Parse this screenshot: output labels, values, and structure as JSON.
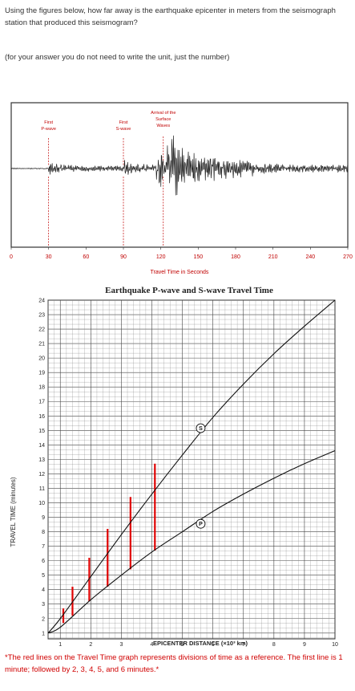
{
  "question": {
    "text": "Using the figures below, how far away is the earthquake epicenter in meters from the seismograph station that produced this seismogram?",
    "note": "(for your answer you do not need to write the unit, just the number)"
  },
  "seismogram": {
    "labels": {
      "p_wave": [
        "First",
        "P-wave"
      ],
      "s_wave": [
        "First",
        "S-wave"
      ],
      "surface": [
        "Arrival of the",
        "Surface",
        "Waves"
      ]
    },
    "x_ticks": [
      "0",
      "30",
      "60",
      "90",
      "120",
      "150",
      "180",
      "210",
      "240",
      "270"
    ],
    "x_axis_label": "Travel Time in Seconds",
    "arrivals_seconds": {
      "p_wave": 30,
      "s_wave": 90,
      "surface": 122
    }
  },
  "chart_data": {
    "type": "line",
    "title": "Earthquake P-wave and S-wave Travel Time",
    "xlabel": "EPICENTER DISTANCE (×10³ km)",
    "ylabel": "TRAVEL TIME (minutes)",
    "x_ticks": [
      "1",
      "2",
      "3",
      "4",
      "5",
      "6",
      "7",
      "8",
      "9",
      "10"
    ],
    "y_ticks": [
      "1",
      "2",
      "3",
      "4",
      "5",
      "6",
      "7",
      "8",
      "9",
      "10",
      "11",
      "12",
      "13",
      "14",
      "15",
      "16",
      "17",
      "18",
      "19",
      "20",
      "21",
      "22",
      "23",
      "24"
    ],
    "xlim": [
      0.6,
      10
    ],
    "ylim": [
      0.6,
      24
    ],
    "series": [
      {
        "name": "S",
        "x": [
          0.6,
          1,
          2,
          3,
          4,
          5,
          6,
          7,
          8,
          9,
          10
        ],
        "y": [
          1.0,
          2.0,
          4.9,
          7.8,
          10.6,
          13.3,
          15.9,
          18.2,
          20.3,
          22.2,
          24.0
        ]
      },
      {
        "name": "P",
        "x": [
          0.6,
          1,
          2,
          3,
          4,
          5,
          6,
          7,
          8,
          9,
          10
        ],
        "y": [
          1.0,
          1.4,
          3.3,
          5.0,
          6.6,
          8.0,
          9.4,
          10.6,
          11.7,
          12.7,
          13.6
        ]
      }
    ],
    "reference_lines": [
      {
        "x": 1.1,
        "y_low": 1.7,
        "y_high": 2.7
      },
      {
        "x": 1.4,
        "y_low": 2.2,
        "y_high": 4.2
      },
      {
        "x": 1.95,
        "y_low": 3.2,
        "y_high": 6.2
      },
      {
        "x": 2.55,
        "y_low": 4.2,
        "y_high": 8.2
      },
      {
        "x": 3.3,
        "y_low": 5.4,
        "y_high": 10.4
      },
      {
        "x": 4.1,
        "y_low": 6.7,
        "y_high": 12.7
      }
    ],
    "grid": true
  },
  "footnote": "*The red lines on the Travel Time graph represents divisions of time  as a reference. The first line is 1 minute; followed by 2, 3, 4, 5, and 6 minutes.*"
}
